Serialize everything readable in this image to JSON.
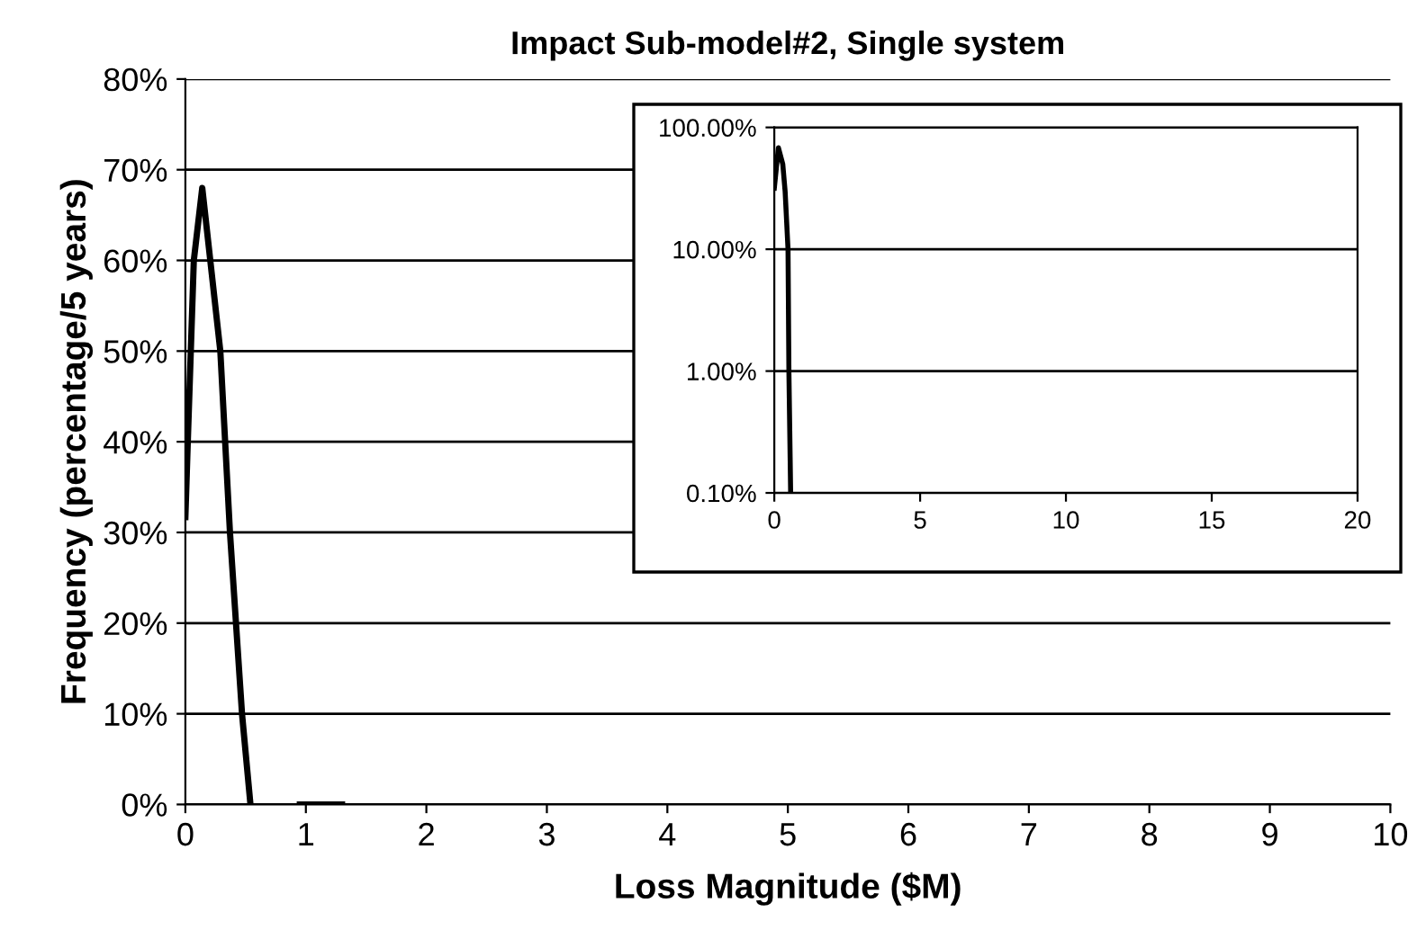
{
  "chart_data": [
    {
      "type": "line",
      "title": "Impact Sub-model#2, Single system",
      "xlabel": "Loss Magnitude ($M)",
      "ylabel": "Frequency (percentage/5 years)",
      "x": [
        0,
        0.02,
        0.07,
        0.14,
        0.29,
        0.37,
        0.47,
        0.54
      ],
      "series": [
        {
          "color": "#000000",
          "values": [
            31.7,
            40,
            60,
            68,
            50,
            30,
            10,
            0
          ]
        },
        {
          "color": "#000000",
          "x": [
            0.95,
            1.3
          ],
          "values": [
            0,
            0
          ]
        }
      ],
      "xlim": [
        0,
        10
      ],
      "xticks": [
        0,
        1,
        2,
        3,
        4,
        5,
        6,
        7,
        8,
        9,
        10
      ],
      "ylim": [
        0,
        80
      ],
      "yticks": [
        {
          "value": 0,
          "label": "0%"
        },
        {
          "value": 10,
          "label": "10%"
        },
        {
          "value": 20,
          "label": "20%"
        },
        {
          "value": 30,
          "label": "30%"
        },
        {
          "value": 40,
          "label": "40%"
        },
        {
          "value": 50,
          "label": "50%"
        },
        {
          "value": 60,
          "label": "60%"
        },
        {
          "value": 70,
          "label": "70%"
        },
        {
          "value": 80,
          "label": "80%"
        }
      ],
      "grid": "y",
      "marker": "none",
      "line_style": "solid"
    },
    {
      "type": "line",
      "x": [
        0,
        0.14,
        0.29,
        0.37,
        0.47,
        0.5,
        0.56
      ],
      "series": [
        {
          "color": "#000000",
          "values": [
            31.7,
            68,
            50,
            30,
            10,
            1,
            0.1
          ]
        }
      ],
      "log": "y",
      "xlim": [
        0,
        20
      ],
      "xticks": [
        0,
        5,
        10,
        15,
        20
      ],
      "ylim": [
        0.1,
        100
      ],
      "yticks": [
        {
          "value": 0.1,
          "label": "0.10%"
        },
        {
          "value": 1,
          "label": "1.00%"
        },
        {
          "value": 10,
          "label": "10.00%"
        },
        {
          "value": 100,
          "label": "100.00%"
        }
      ],
      "grid": "y",
      "marker": "none",
      "line_style": "solid"
    }
  ]
}
